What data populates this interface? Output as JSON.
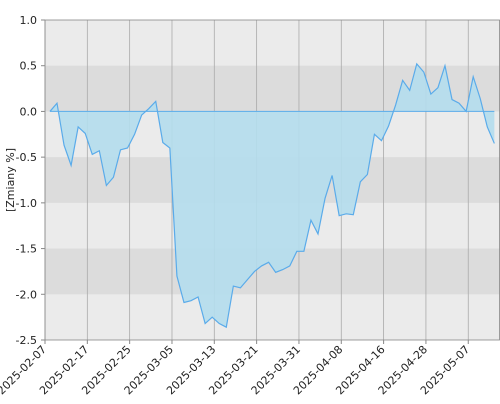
{
  "chart_data": {
    "type": "area",
    "y_label": "[Zmiany %]",
    "color": "#5aabea",
    "fill": "#b4dded",
    "band_colors": [
      "#ebebeb",
      "#dcdcdc"
    ],
    "ylim": [
      -2.5,
      1.0
    ],
    "yticks": [
      {
        "value": 1.0,
        "label": "1.0"
      },
      {
        "value": 0.5,
        "label": "0.5"
      },
      {
        "value": 0,
        "label": "0.0"
      },
      {
        "value": -0.5,
        "label": "-0.5"
      },
      {
        "value": -1.0,
        "label": "-1.0"
      },
      {
        "value": -1.5,
        "label": "-1.5"
      },
      {
        "value": -2.0,
        "label": "-2.0"
      },
      {
        "value": -2.5,
        "label": "-2.5"
      }
    ],
    "xlim": [
      -0.7,
      63.8
    ],
    "xticks": [
      {
        "value": -0.7,
        "label": "2025-02-07"
      },
      {
        "value": 5.3,
        "label": "2025-02-17"
      },
      {
        "value": 11.3,
        "label": "2025-02-25"
      },
      {
        "value": 17.3,
        "label": "2025-03-05"
      },
      {
        "value": 23.3,
        "label": "2025-03-13"
      },
      {
        "value": 29.3,
        "label": "2025-03-21"
      },
      {
        "value": 35.3,
        "label": "2025-03-31"
      },
      {
        "value": 41.3,
        "label": "2025-04-08"
      },
      {
        "value": 47.3,
        "label": "2025-04-16"
      },
      {
        "value": 53.3,
        "label": "2025-04-28"
      },
      {
        "value": 59.3,
        "label": "2025-05-07"
      }
    ],
    "values": [
      0.0,
      0.09,
      -0.37,
      -0.59,
      -0.17,
      -0.24,
      -0.47,
      -0.43,
      -0.81,
      -0.72,
      -0.42,
      -0.4,
      -0.25,
      -0.04,
      0.03,
      0.11,
      -0.34,
      -0.4,
      -1.8,
      -2.09,
      -2.07,
      -2.03,
      -2.32,
      -2.25,
      -2.32,
      -2.36,
      -1.91,
      -1.93,
      -1.84,
      -1.75,
      -1.69,
      -1.65,
      -1.76,
      -1.73,
      -1.69,
      -1.53,
      -1.53,
      -1.19,
      -1.34,
      -0.95,
      -0.7,
      -1.14,
      -1.12,
      -1.13,
      -0.77,
      -0.69,
      -0.25,
      -0.32,
      -0.16,
      0.07,
      0.34,
      0.23,
      0.52,
      0.43,
      0.19,
      0.26,
      0.5,
      0.13,
      0.09,
      0.0,
      0.38,
      0.14,
      -0.17,
      -0.35
    ]
  }
}
